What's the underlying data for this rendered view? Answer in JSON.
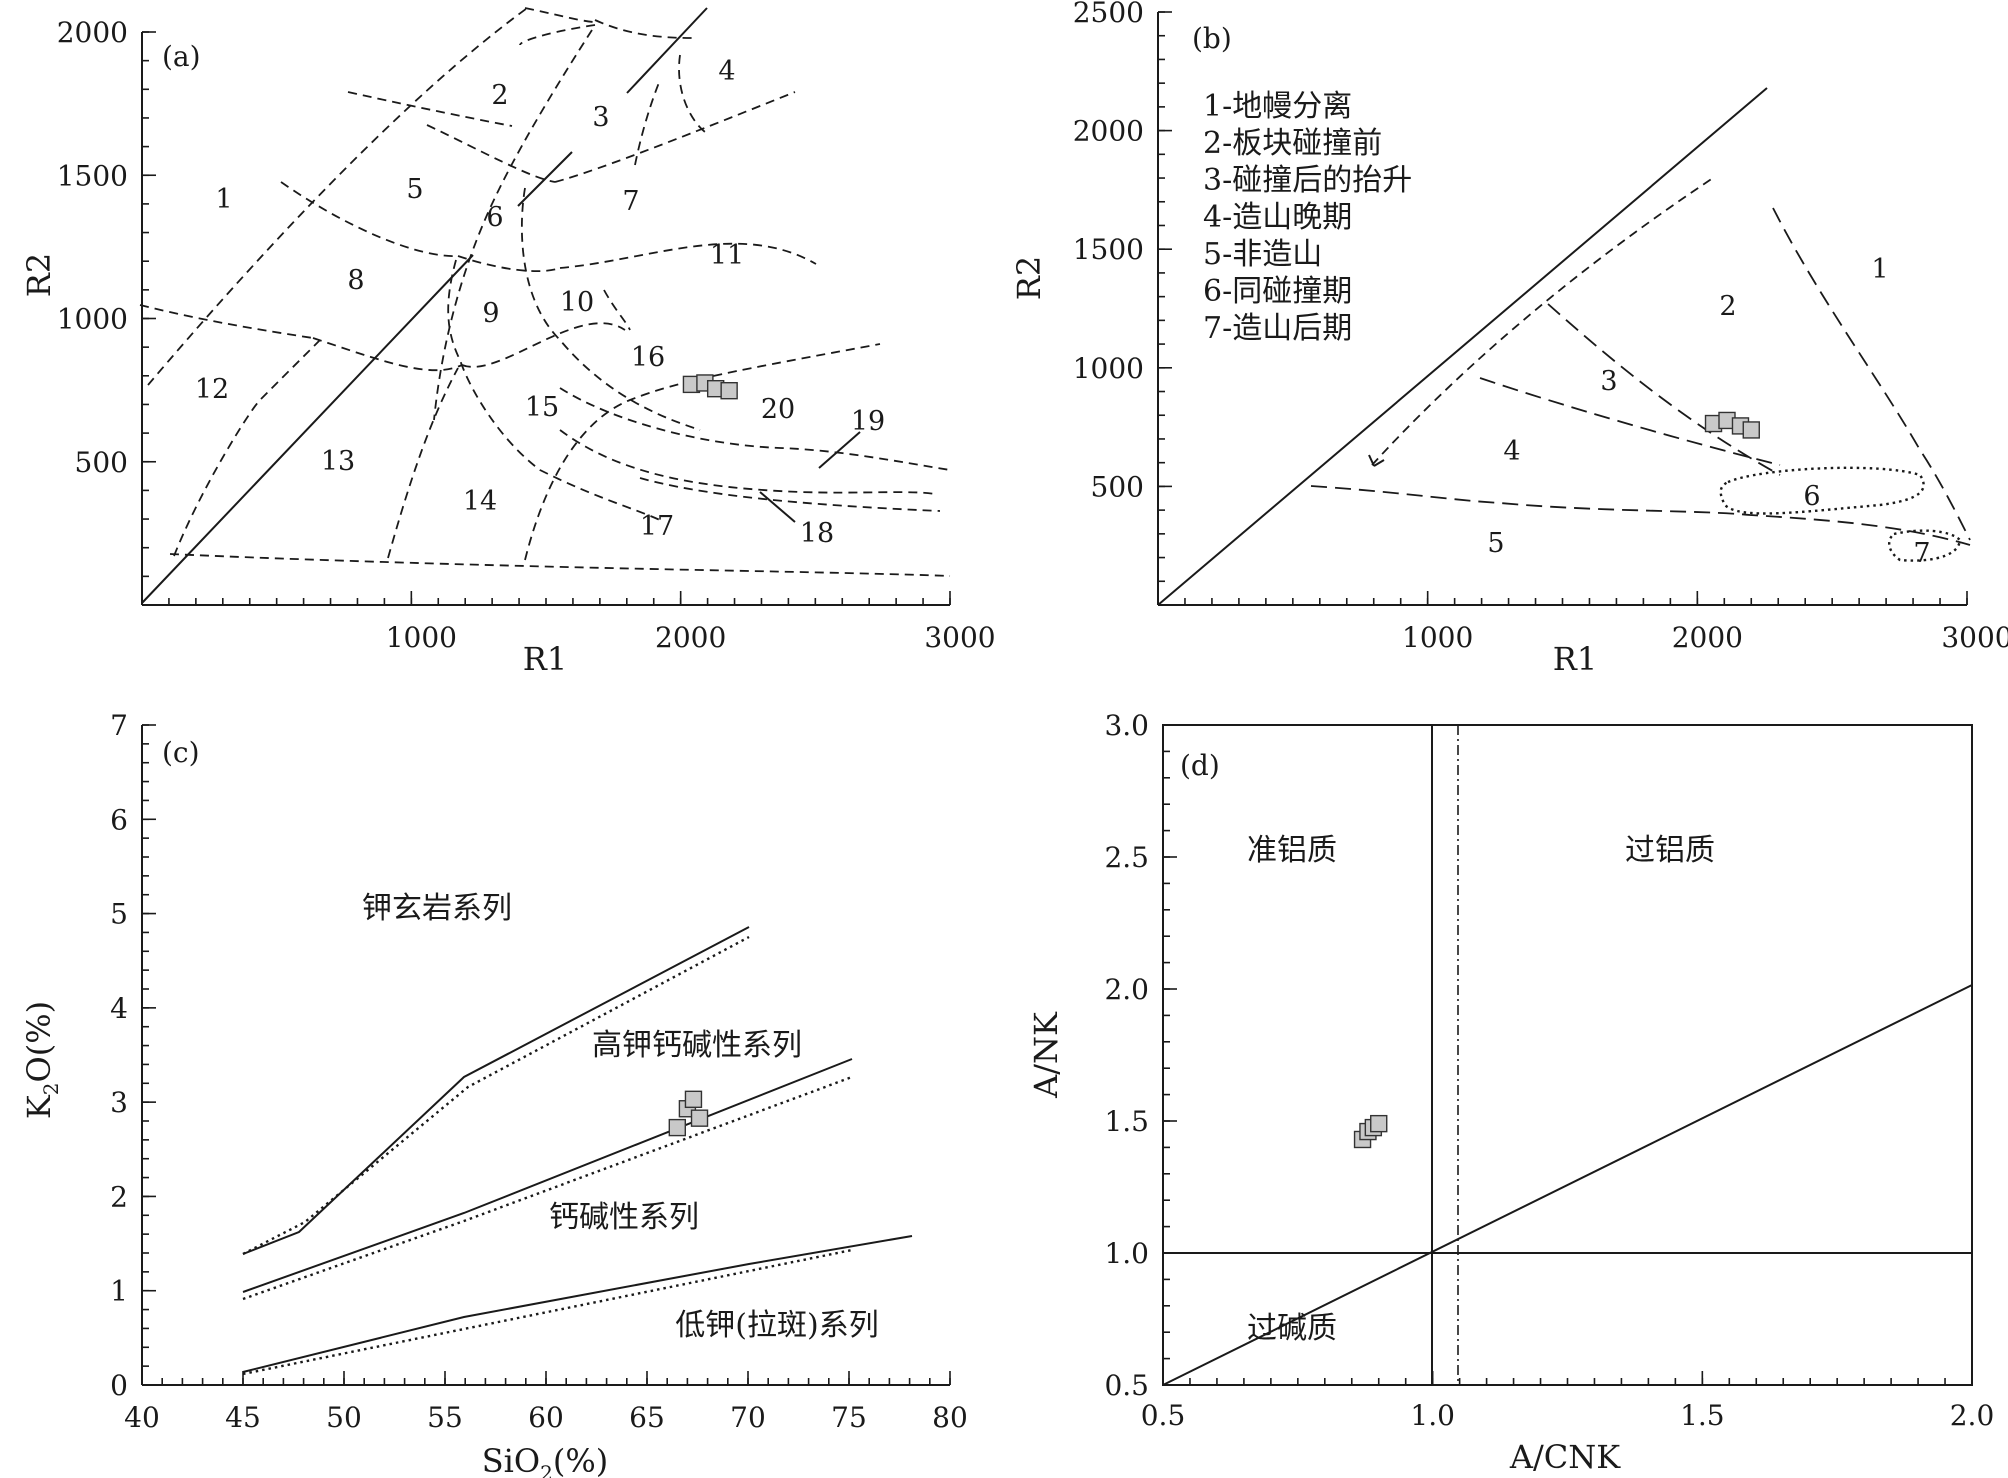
{
  "chart_data": [
    {
      "id": "a",
      "type": "scatter",
      "panel_label": "(a)",
      "xlabel": "R1",
      "ylabel": "R2",
      "xlim": [
        0,
        3000
      ],
      "ylim": [
        0,
        2000
      ],
      "x_ticks": [
        "1000",
        "2000",
        "3000"
      ],
      "y_ticks": [
        "500",
        "1000",
        "1500",
        "2000"
      ],
      "field_labels": [
        "1",
        "2",
        "3",
        "4",
        "5",
        "6",
        "7",
        "8",
        "9",
        "10",
        "11",
        "12",
        "13",
        "14",
        "15",
        "16",
        "17",
        "18",
        "19",
        "20"
      ],
      "points": [
        {
          "x": 2040,
          "y": 770
        },
        {
          "x": 2090,
          "y": 775
        },
        {
          "x": 2130,
          "y": 755
        },
        {
          "x": 2180,
          "y": 748
        }
      ]
    },
    {
      "id": "b",
      "type": "scatter",
      "panel_label": "(b)",
      "xlabel": "R1",
      "ylabel": "R2",
      "xlim": [
        0,
        3000
      ],
      "ylim": [
        0,
        2500
      ],
      "x_ticks": [
        "1000",
        "2000",
        "3000"
      ],
      "y_ticks": [
        "500",
        "1000",
        "1500",
        "2000",
        "2500"
      ],
      "legend": [
        "1-地幔分离",
        "2-板块碰撞前",
        "3-碰撞后的抬升",
        "4-造山晚期",
        "5-非造山",
        "6-同碰撞期",
        "7-造山后期"
      ],
      "field_labels": [
        "1",
        "2",
        "3",
        "4",
        "5",
        "6",
        "7"
      ],
      "points": [
        {
          "x": 2060,
          "y": 765
        },
        {
          "x": 2110,
          "y": 778
        },
        {
          "x": 2160,
          "y": 755
        },
        {
          "x": 2200,
          "y": 738
        }
      ]
    },
    {
      "id": "c",
      "type": "scatter",
      "panel_label": "(c)",
      "xlabel_main": "SiO",
      "xlabel_sub": "2",
      "xlabel_tail": "(%)",
      "ylabel_main": "K",
      "ylabel_sub": "2",
      "ylabel_tail": "O(%)",
      "xlim": [
        40,
        80
      ],
      "ylim": [
        0,
        7
      ],
      "x_ticks": [
        "40",
        "45",
        "50",
        "55",
        "60",
        "65",
        "70",
        "75",
        "80"
      ],
      "y_ticks": [
        "0",
        "1",
        "2",
        "3",
        "4",
        "5",
        "6",
        "7"
      ],
      "series_labels": [
        "钾玄岩系列",
        "高钾钙碱性系列",
        "钙碱性系列",
        "低钾(拉斑)系列"
      ],
      "points": [
        {
          "x": 66.5,
          "y": 2.73
        },
        {
          "x": 67.0,
          "y": 2.93
        },
        {
          "x": 67.3,
          "y": 3.03
        },
        {
          "x": 67.6,
          "y": 2.83
        }
      ]
    },
    {
      "id": "d",
      "type": "scatter",
      "panel_label": "(d)",
      "xlabel": "A/CNK",
      "ylabel": "A/NK",
      "xlim": [
        0.5,
        2.0
      ],
      "ylim": [
        0.5,
        3.0
      ],
      "x_ticks": [
        "0.5",
        "1.0",
        "1.5",
        "2.0"
      ],
      "y_ticks": [
        "0.5",
        "1.0",
        "1.5",
        "2.0",
        "2.5",
        "3.0"
      ],
      "field_labels": [
        "准铝质",
        "过铝质",
        "过碱质"
      ],
      "points": [
        {
          "x": 0.87,
          "y": 1.43
        },
        {
          "x": 0.88,
          "y": 1.46
        },
        {
          "x": 0.89,
          "y": 1.475
        },
        {
          "x": 0.9,
          "y": 1.49
        }
      ]
    }
  ]
}
